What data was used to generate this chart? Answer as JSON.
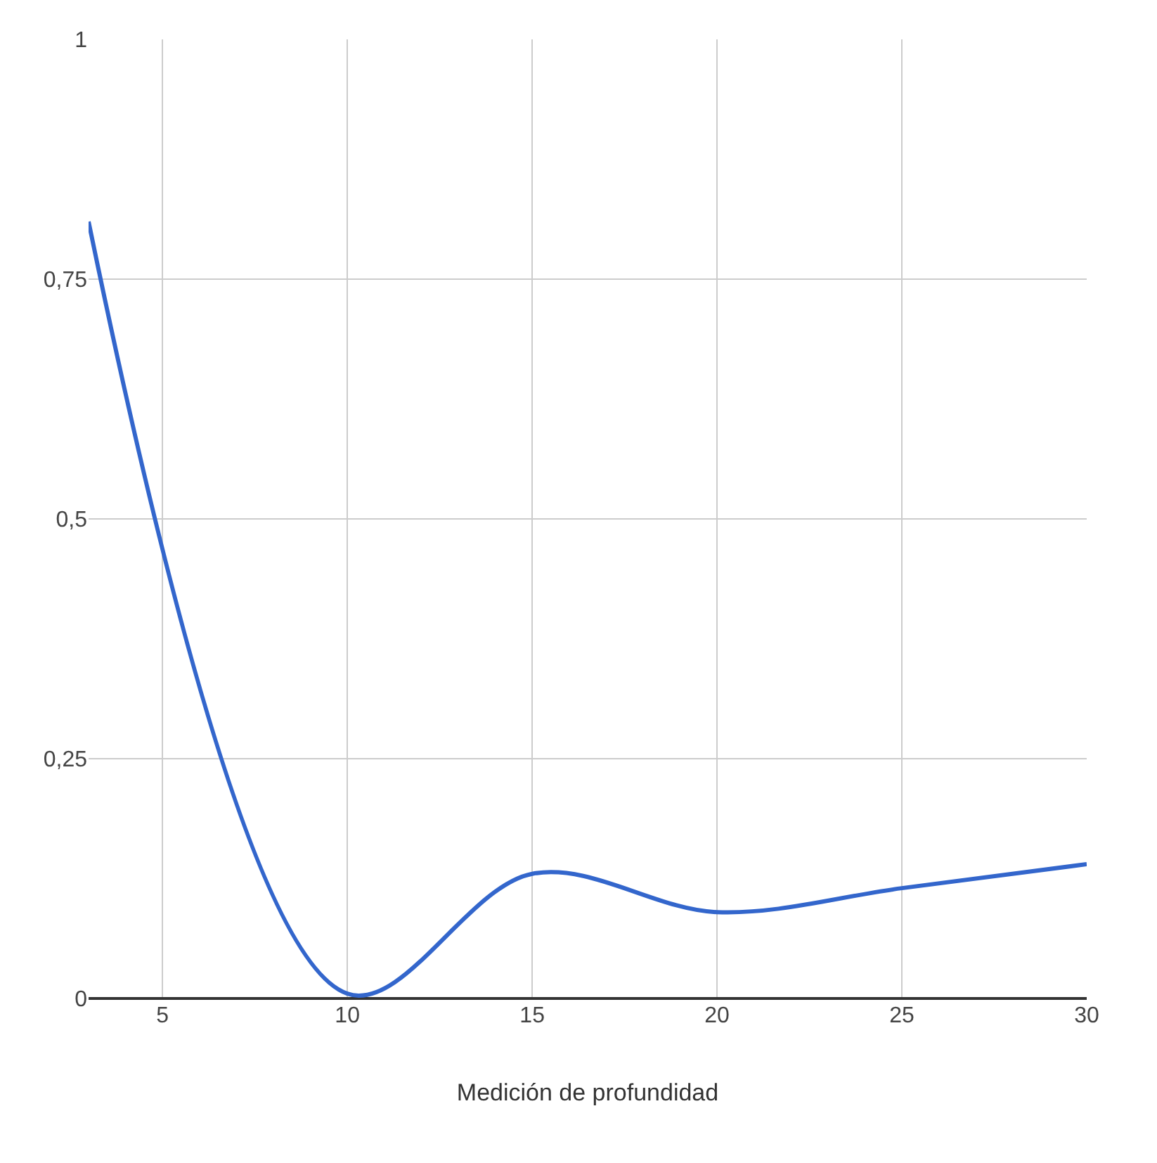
{
  "chart_data": {
    "type": "line",
    "xlabel": "Medición de profundidad",
    "x": [
      3,
      10,
      15,
      20,
      25,
      30
    ],
    "series": [
      {
        "color": "#3366cc",
        "values": [
          0.81,
          0.005,
          0.13,
          0.09,
          0.115,
          0.14
        ]
      }
    ],
    "xlim": [
      3,
      30
    ],
    "xticks": [
      5,
      10,
      15,
      20,
      25,
      30
    ],
    "ylim": [
      0,
      1
    ],
    "yticks": [
      0,
      {
        "value": 0.25,
        "label": "0,25"
      },
      {
        "value": 0.5,
        "label": "0,5"
      },
      {
        "value": 0.75,
        "label": "0,75"
      },
      1
    ],
    "grid": true
  }
}
